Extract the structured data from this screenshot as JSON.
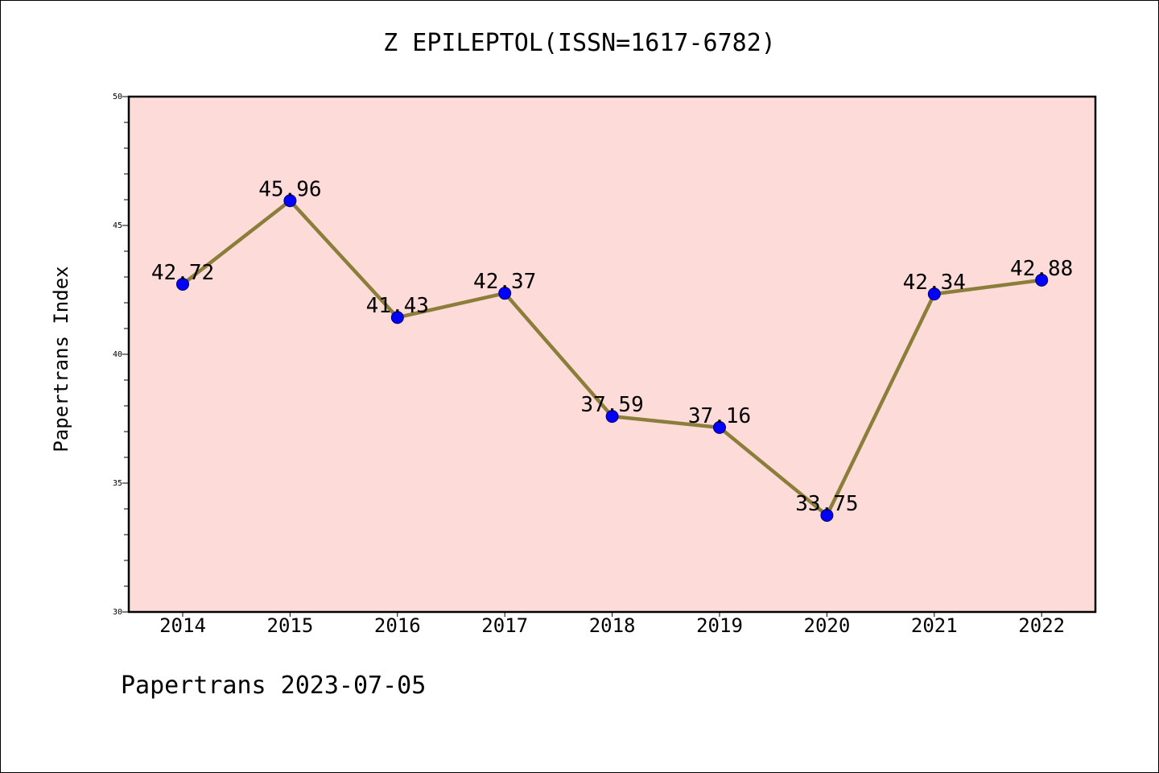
{
  "chart_data": {
    "type": "line",
    "title": "Z EPILEPTOL(ISSN=1617-6782)",
    "ylabel": "Papertrans Index",
    "xlabel": "",
    "categories": [
      "2014",
      "2015",
      "2016",
      "2017",
      "2018",
      "2019",
      "2020",
      "2021",
      "2022"
    ],
    "series": [
      {
        "values": [
          42.72,
          45.96,
          41.43,
          42.37,
          37.59,
          37.16,
          33.75,
          42.34,
          42.88
        ],
        "labels": [
          "42.72",
          "45.96",
          "41.43",
          "42.37",
          "37.59",
          "37.16",
          "33.75",
          "42.34",
          "42.88"
        ]
      }
    ],
    "ylim": [
      30,
      50
    ],
    "yticks": [
      "30",
      "35",
      "40",
      "45",
      "50"
    ],
    "grid": false,
    "colors": {
      "plot_background": "#fddbd8",
      "line": "#8b7d3a",
      "marker": "#0000ff"
    }
  },
  "footer": {
    "note": "Papertrans 2023-07-05"
  }
}
